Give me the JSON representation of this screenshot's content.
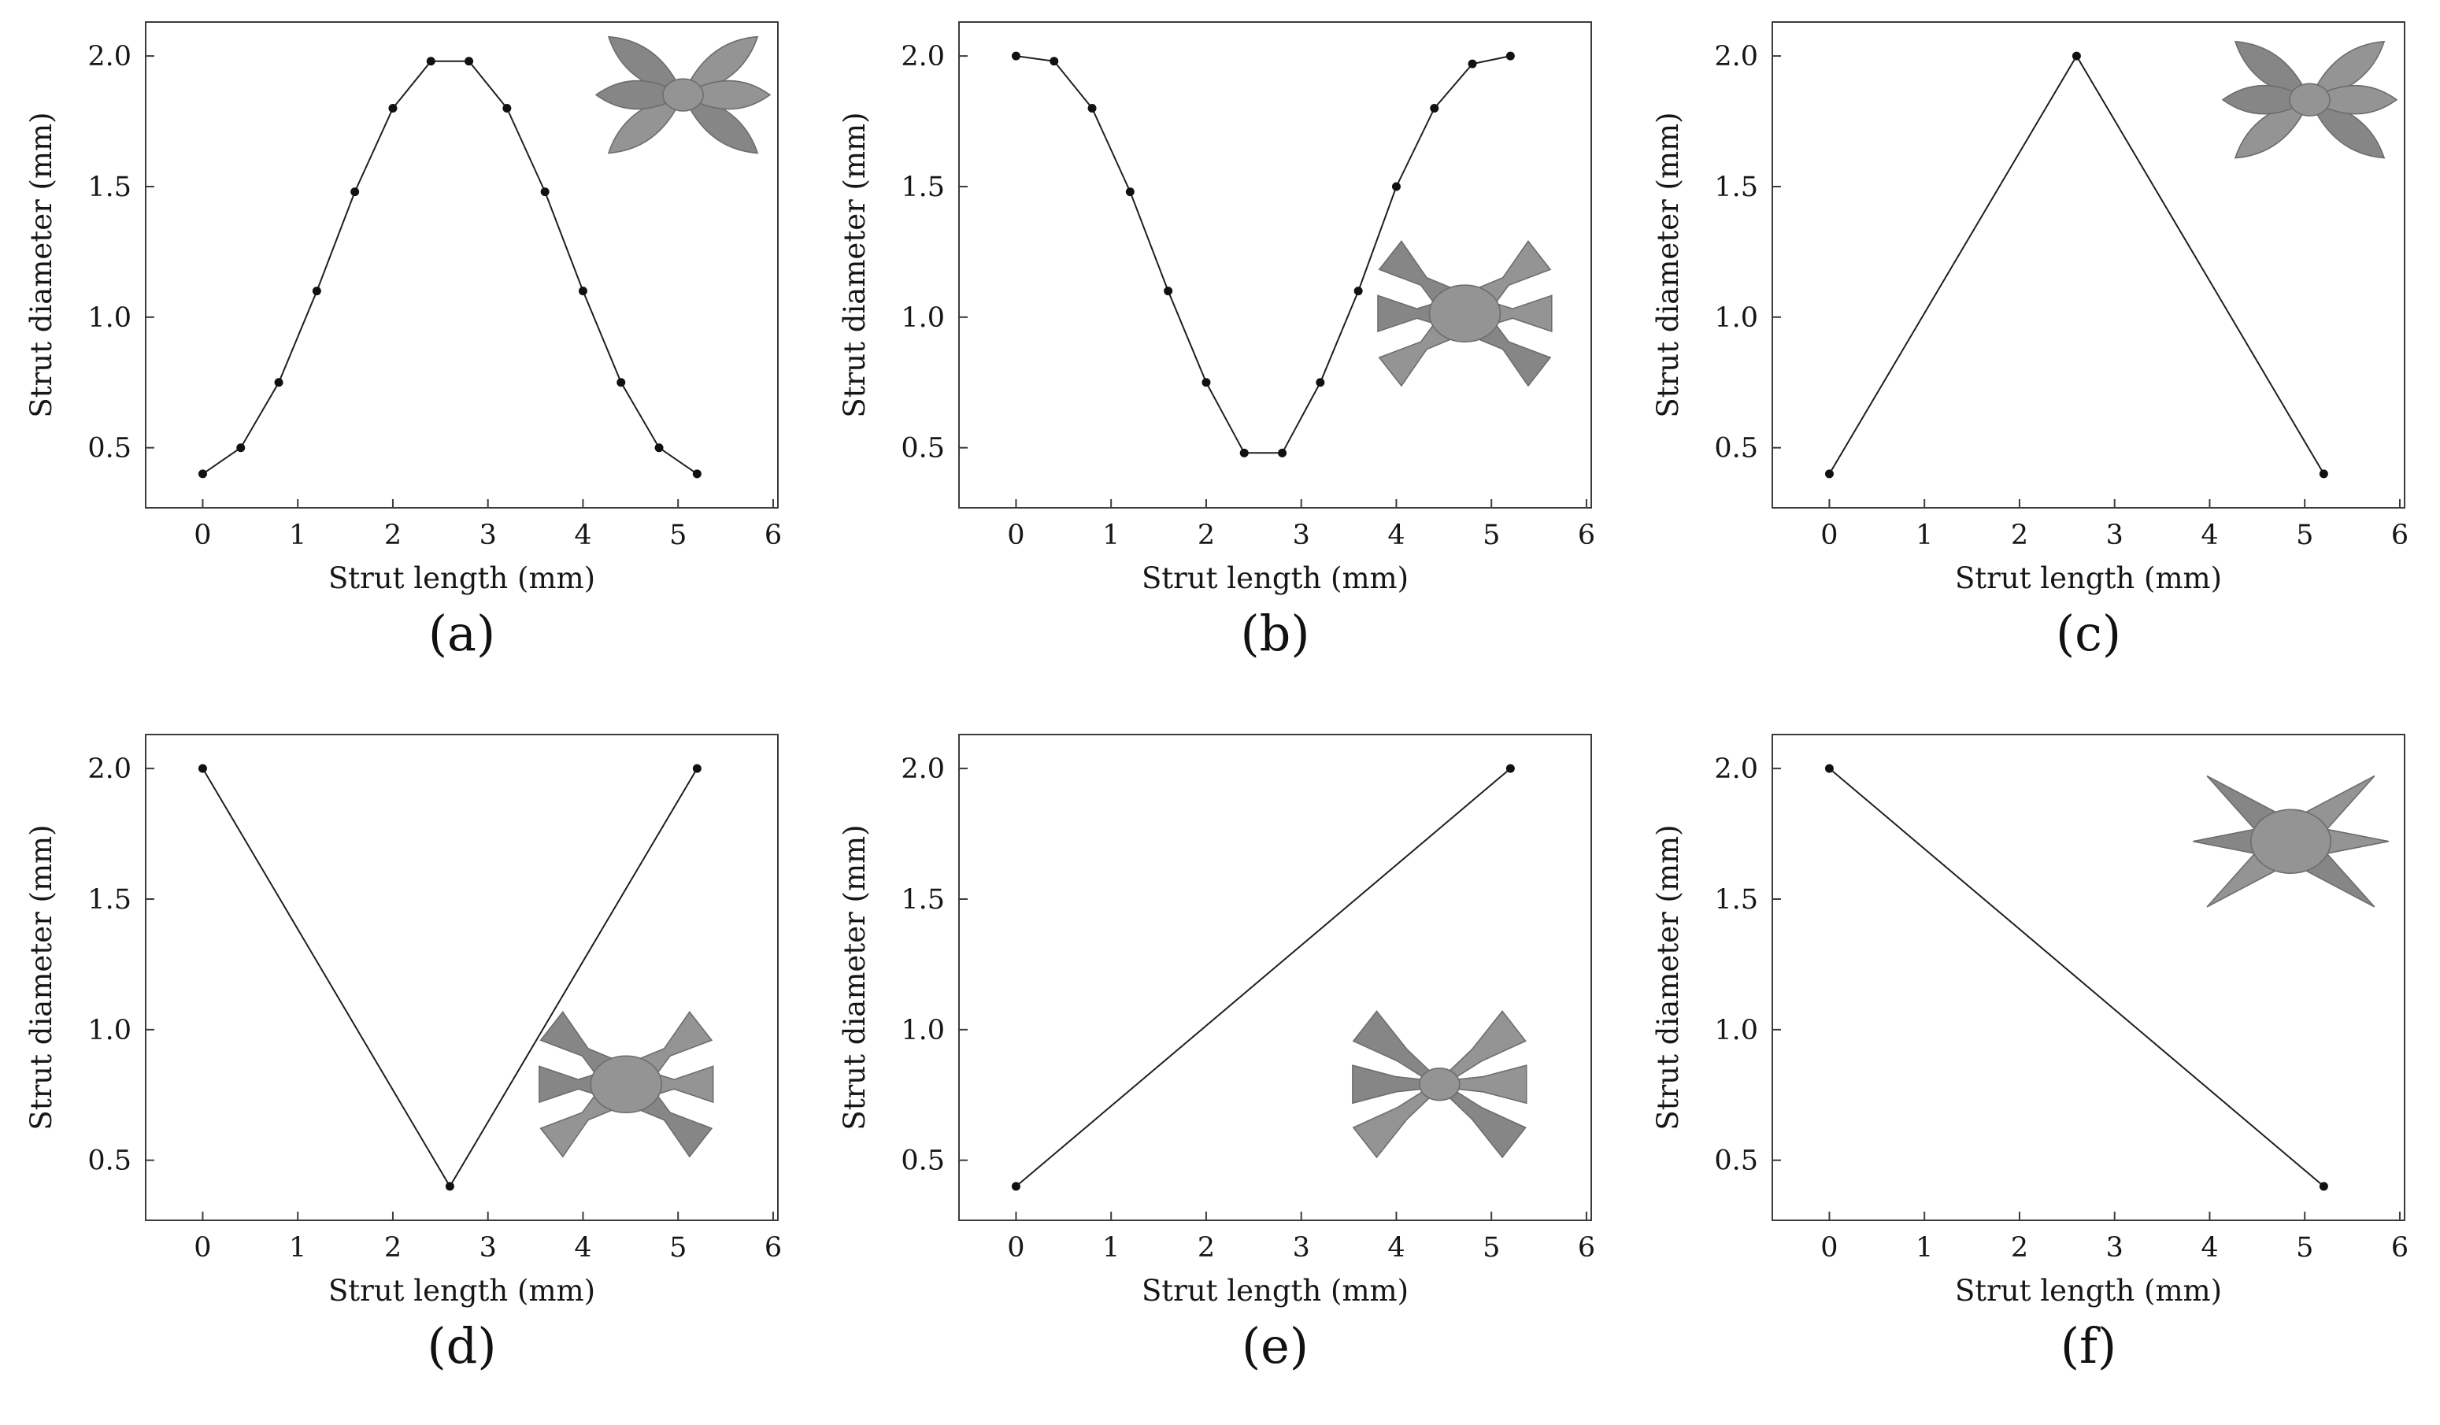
{
  "figure": {
    "background": "#ffffff",
    "line_color": "#1f1f1f",
    "marker_color": "#111111",
    "axis_color": "#3c3c3c",
    "inset_fill_a": "#949494",
    "inset_fill_b": "#868686",
    "inset_stroke": "#6d6d6d"
  },
  "chart_data": [
    {
      "type": "line",
      "caption": "(a)",
      "xlabel": "Strut length (mm)",
      "ylabel": "Strut diameter (mm)",
      "x": [
        0,
        0.4,
        0.8,
        1.2,
        1.6,
        2.0,
        2.4,
        2.8,
        3.2,
        3.6,
        4.0,
        4.4,
        4.8,
        5.2
      ],
      "y": [
        0.4,
        0.5,
        0.75,
        1.1,
        1.48,
        1.8,
        1.98,
        1.98,
        1.8,
        1.48,
        1.1,
        0.75,
        0.5,
        0.4
      ],
      "xlim": [
        -0.6,
        6.05
      ],
      "ylim": [
        0.27,
        2.13
      ],
      "xticks": [
        0,
        1,
        2,
        3,
        4,
        5,
        6
      ],
      "xticklabels": [
        "0",
        "1",
        "2",
        "3",
        "4",
        "5",
        "6"
      ],
      "yticks": [
        0.5,
        1.0,
        1.5,
        2.0
      ],
      "yticklabels": [
        "0.5",
        "1.0",
        "1.5",
        "2.0"
      ],
      "grid": false,
      "legend": null,
      "inset": {
        "name": "lattice-unit-cell-render",
        "arm_profile": "bulge-middle",
        "position": "top-right",
        "fx": 0.85,
        "fy": 0.15,
        "r": 120
      }
    },
    {
      "type": "line",
      "caption": "(b)",
      "xlabel": "Strut length (mm)",
      "ylabel": "Strut diameter (mm)",
      "x": [
        0,
        0.4,
        0.8,
        1.2,
        1.6,
        2.0,
        2.4,
        2.8,
        3.2,
        3.6,
        4.0,
        4.4,
        4.8,
        5.2
      ],
      "y": [
        2.0,
        1.98,
        1.8,
        1.48,
        1.1,
        0.75,
        0.48,
        0.48,
        0.75,
        1.1,
        1.5,
        1.8,
        1.97,
        2.0
      ],
      "xlim": [
        -0.6,
        6.05
      ],
      "ylim": [
        0.27,
        2.13
      ],
      "xticks": [
        0,
        1,
        2,
        3,
        4,
        5,
        6
      ],
      "xticklabels": [
        "0",
        "1",
        "2",
        "3",
        "4",
        "5",
        "6"
      ],
      "yticks": [
        0.5,
        1.0,
        1.5,
        2.0
      ],
      "yticklabels": [
        "0.5",
        "1.0",
        "1.5",
        "2.0"
      ],
      "grid": false,
      "legend": null,
      "inset": {
        "name": "lattice-unit-cell-render",
        "arm_profile": "bulge-ends",
        "position": "right",
        "fx": 0.8,
        "fy": 0.6,
        "r": 120
      }
    },
    {
      "type": "line",
      "caption": "(c)",
      "xlabel": "Strut length (mm)",
      "ylabel": "Strut diameter (mm)",
      "x": [
        0,
        2.6,
        5.2
      ],
      "y": [
        0.4,
        2.0,
        0.4
      ],
      "xlim": [
        -0.6,
        6.05
      ],
      "ylim": [
        0.27,
        2.13
      ],
      "xticks": [
        0,
        1,
        2,
        3,
        4,
        5,
        6
      ],
      "xticklabels": [
        "0",
        "1",
        "2",
        "3",
        "4",
        "5",
        "6"
      ],
      "yticks": [
        0.5,
        1.0,
        1.5,
        2.0
      ],
      "yticklabels": [
        "0.5",
        "1.0",
        "1.5",
        "2.0"
      ],
      "grid": false,
      "legend": null,
      "inset": {
        "name": "lattice-unit-cell-render",
        "arm_profile": "bulge-middle",
        "position": "top-right",
        "fx": 0.85,
        "fy": 0.16,
        "r": 120
      }
    },
    {
      "type": "line",
      "caption": "(d)",
      "xlabel": "Strut length (mm)",
      "ylabel": "Strut diameter (mm)",
      "x": [
        0,
        2.6,
        5.2
      ],
      "y": [
        2.0,
        0.4,
        2.0
      ],
      "xlim": [
        -0.6,
        6.05
      ],
      "ylim": [
        0.27,
        2.13
      ],
      "xticks": [
        0,
        1,
        2,
        3,
        4,
        5,
        6
      ],
      "xticklabels": [
        "0",
        "1",
        "2",
        "3",
        "4",
        "5",
        "6"
      ],
      "yticks": [
        0.5,
        1.0,
        1.5,
        2.0
      ],
      "yticklabels": [
        "0.5",
        "1.0",
        "1.5",
        "2.0"
      ],
      "grid": false,
      "legend": null,
      "inset": {
        "name": "lattice-unit-cell-render",
        "arm_profile": "bulge-ends",
        "position": "bottom-right",
        "fx": 0.76,
        "fy": 0.72,
        "r": 120
      }
    },
    {
      "type": "line",
      "caption": "(e)",
      "xlabel": "Strut length (mm)",
      "ylabel": "Strut diameter (mm)",
      "x": [
        0,
        5.2
      ],
      "y": [
        0.4,
        2.0
      ],
      "xlim": [
        -0.6,
        6.05
      ],
      "ylim": [
        0.27,
        2.13
      ],
      "xticks": [
        0,
        1,
        2,
        3,
        4,
        5,
        6
      ],
      "xticklabels": [
        "0",
        "1",
        "2",
        "3",
        "4",
        "5",
        "6"
      ],
      "yticks": [
        0.5,
        1.0,
        1.5,
        2.0
      ],
      "yticklabels": [
        "0.5",
        "1.0",
        "1.5",
        "2.0"
      ],
      "grid": false,
      "legend": null,
      "inset": {
        "name": "lattice-unit-cell-render",
        "arm_profile": "increase-outward",
        "position": "bottom-right",
        "fx": 0.76,
        "fy": 0.72,
        "r": 120
      }
    },
    {
      "type": "line",
      "caption": "(f)",
      "xlabel": "Strut length (mm)",
      "ylabel": "Strut diameter (mm)",
      "x": [
        0,
        5.2
      ],
      "y": [
        2.0,
        0.4
      ],
      "xlim": [
        -0.6,
        6.05
      ],
      "ylim": [
        0.27,
        2.13
      ],
      "xticks": [
        0,
        1,
        2,
        3,
        4,
        5,
        6
      ],
      "xticklabels": [
        "0",
        "1",
        "2",
        "3",
        "4",
        "5",
        "6"
      ],
      "yticks": [
        0.5,
        1.0,
        1.5,
        2.0
      ],
      "yticklabels": [
        "0.5",
        "1.0",
        "1.5",
        "2.0"
      ],
      "grid": false,
      "legend": null,
      "inset": {
        "name": "lattice-unit-cell-render",
        "arm_profile": "decrease-outward",
        "position": "top-right",
        "fx": 0.82,
        "fy": 0.22,
        "r": 135
      }
    }
  ]
}
